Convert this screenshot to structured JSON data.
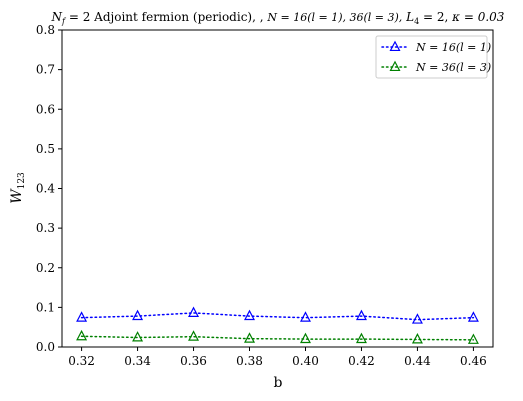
{
  "chart_data": {
    "type": "line",
    "title": "N_f = 2 Adjoint fermion (periodic), , N = 16(l = 1), 36(l = 3),  L_4 = 2,  κ = 0.03",
    "title_parts": {
      "nf": "N",
      "nf_sub": "f",
      "nf_eq": " = 2 Adjoint fermion (periodic), , ",
      "n_expr": "N = 16(l = 1), 36(l = 3),",
      "l4": "L",
      "l4_sub": "4",
      "l4_eq": " = 2,",
      "kappa": "κ = 0.03"
    },
    "xlabel": "b",
    "ylabel": "W",
    "ylabel_sub": "123",
    "xlim": [
      0.313,
      0.467
    ],
    "ylim": [
      0.0,
      0.8
    ],
    "xticks": [
      "0.32",
      "0.34",
      "0.36",
      "0.38",
      "0.40",
      "0.42",
      "0.44",
      "0.46"
    ],
    "yticks": [
      "0.0",
      "0.1",
      "0.2",
      "0.3",
      "0.4",
      "0.5",
      "0.6",
      "0.7",
      "0.8"
    ],
    "x": [
      0.32,
      0.34,
      0.36,
      0.38,
      0.4,
      0.42,
      0.44,
      0.46
    ],
    "legend_position": "top-right",
    "grid": false,
    "series": [
      {
        "name": "N = 16(l = 1)",
        "color": "#0000ff",
        "marker": "triangle",
        "linestyle": "dotted",
        "values": [
          0.074,
          0.078,
          0.086,
          0.078,
          0.074,
          0.078,
          0.069,
          0.074
        ]
      },
      {
        "name": "N = 36(l = 3)",
        "color": "#008000",
        "marker": "triangle",
        "linestyle": "dotted",
        "values": [
          0.027,
          0.024,
          0.026,
          0.021,
          0.02,
          0.02,
          0.019,
          0.018
        ]
      }
    ]
  }
}
